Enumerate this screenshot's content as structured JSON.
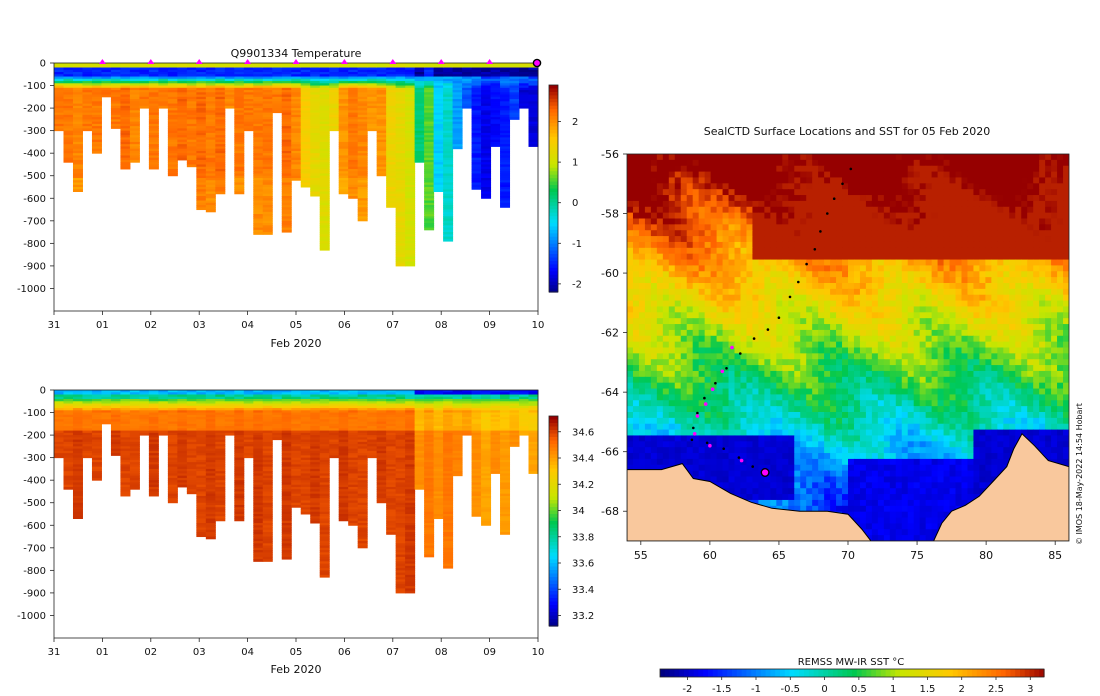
{
  "chart_data": [
    {
      "type": "heatmap",
      "title": "Q9901334  Temperature",
      "xlabel": "Feb 2020",
      "ylabel": "",
      "x_ticks": [
        "31",
        "01",
        "02",
        "03",
        "04",
        "05",
        "06",
        "07",
        "08",
        "09",
        "10"
      ],
      "y_ticks": [
        "0",
        "-100",
        "-200",
        "-300",
        "-400",
        "-500",
        "-600",
        "-700",
        "-800",
        "-900",
        "-1000"
      ],
      "ylim": [
        -1100,
        0
      ],
      "colorbar": {
        "ticks": [
          "-2",
          "-1",
          "0",
          "1",
          "2"
        ],
        "range": [
          -2.2,
          2.9
        ]
      },
      "surface_markers": [
        "01",
        "02",
        "03",
        "04",
        "05",
        "06",
        "07",
        "08",
        "09"
      ],
      "profile_max_depth": [
        300,
        440,
        570,
        300,
        400,
        150,
        290,
        470,
        440,
        200,
        470,
        200,
        500,
        430,
        460,
        650,
        660,
        580,
        200,
        580,
        300,
        760,
        760,
        220,
        750,
        520,
        550,
        590,
        830,
        300,
        580,
        600,
        700,
        300,
        500,
        640,
        900,
        900,
        440,
        740,
        570,
        790,
        380,
        200,
        560,
        600,
        370,
        640,
        250,
        200,
        370
      ],
      "deep_temperature_by_profile": [
        2.2,
        2.2,
        2.1,
        2.2,
        2.2,
        2.2,
        2.2,
        2.3,
        2.1,
        2.2,
        2.2,
        2.2,
        2.2,
        2.3,
        2.2,
        2.3,
        2.2,
        2.3,
        2.1,
        2.2,
        2.2,
        2.2,
        2.2,
        2.2,
        2.3,
        2.1,
        1.5,
        1.3,
        1.2,
        1.4,
        2.0,
        2.2,
        2.1,
        2.0,
        2.0,
        1.4,
        1.3,
        1.1,
        0.2,
        0.6,
        -0.5,
        -0.2,
        -0.8,
        -1.2,
        -1.5,
        -1.7,
        -1.6,
        -1.5,
        -1.3,
        -1.8,
        -1.8
      ]
    },
    {
      "type": "heatmap",
      "title": "",
      "xlabel": "Feb 2020",
      "ylabel": "",
      "x_ticks": [
        "31",
        "01",
        "02",
        "03",
        "04",
        "05",
        "06",
        "07",
        "08",
        "09",
        "10"
      ],
      "y_ticks": [
        "0",
        "-100",
        "-200",
        "-300",
        "-400",
        "-500",
        "-600",
        "-700",
        "-800",
        "-900",
        "-1000"
      ],
      "ylim": [
        -1100,
        0
      ],
      "colorbar": {
        "ticks": [
          "33.2",
          "33.4",
          "33.6",
          "33.8",
          "34",
          "34.2",
          "34.4",
          "34.6"
        ],
        "range": [
          33.12,
          34.72
        ]
      },
      "deep_salinity_by_profile": [
        34.6,
        34.6,
        34.62,
        34.6,
        34.6,
        34.6,
        34.62,
        34.6,
        34.6,
        34.6,
        34.62,
        34.6,
        34.6,
        34.62,
        34.6,
        34.6,
        34.62,
        34.6,
        34.6,
        34.62,
        34.6,
        34.62,
        34.6,
        34.6,
        34.62,
        34.6,
        34.6,
        34.62,
        34.6,
        34.6,
        34.62,
        34.6,
        34.6,
        34.6,
        34.62,
        34.6,
        34.6,
        34.62,
        34.45,
        34.5,
        34.45,
        34.5,
        34.48,
        34.5,
        34.45,
        34.4,
        34.45,
        34.42,
        34.45,
        34.4,
        34.4
      ]
    },
    {
      "type": "heatmap",
      "title": "SealCTD Surface Locations and SST for 05 Feb 2020",
      "xlabel": "",
      "ylabel": "",
      "x_ticks": [
        "55",
        "60",
        "65",
        "70",
        "75",
        "80",
        "85"
      ],
      "y_ticks": [
        "-56",
        "-58",
        "-60",
        "-62",
        "-64",
        "-66",
        "-68"
      ],
      "xlim": [
        54,
        86
      ],
      "ylim": [
        -69,
        -56
      ],
      "colorbar_label": "REMSS MW-IR SST °C",
      "colorbar": {
        "ticks": [
          "-2",
          "-1.5",
          "-1",
          "-0.5",
          "0",
          "0.5",
          "1",
          "1.5",
          "2",
          "2.5",
          "3"
        ],
        "range": [
          -2.4,
          3.2
        ]
      },
      "credit": "© IMOS 18-May-2022 14:54 Hobart",
      "track": [
        [
          70.2,
          -56.5
        ],
        [
          69.6,
          -57.0
        ],
        [
          69.0,
          -57.5
        ],
        [
          68.5,
          -58.0
        ],
        [
          68.0,
          -58.6
        ],
        [
          67.6,
          -59.2
        ],
        [
          67.0,
          -59.7
        ],
        [
          66.4,
          -60.3
        ],
        [
          65.8,
          -60.8
        ],
        [
          65.0,
          -61.5
        ],
        [
          64.2,
          -61.9
        ],
        [
          63.2,
          -62.2
        ],
        [
          62.2,
          -62.7
        ],
        [
          61.2,
          -63.2
        ],
        [
          60.4,
          -63.7
        ],
        [
          59.6,
          -64.2
        ],
        [
          59.1,
          -64.7
        ],
        [
          58.8,
          -65.2
        ],
        [
          58.7,
          -65.6
        ],
        [
          59.8,
          -65.7
        ],
        [
          61.0,
          -65.9
        ],
        [
          62.1,
          -66.2
        ],
        [
          63.1,
          -66.5
        ],
        [
          64.0,
          -66.7
        ]
      ],
      "surface_track": [
        [
          61.6,
          -62.5
        ],
        [
          60.9,
          -63.3
        ],
        [
          60.2,
          -63.9
        ],
        [
          59.7,
          -64.4
        ],
        [
          59.1,
          -64.8
        ],
        [
          58.9,
          -65.4
        ],
        [
          60.0,
          -65.8
        ],
        [
          62.3,
          -66.3
        ]
      ],
      "current_position": [
        64.0,
        -66.7
      ]
    }
  ]
}
